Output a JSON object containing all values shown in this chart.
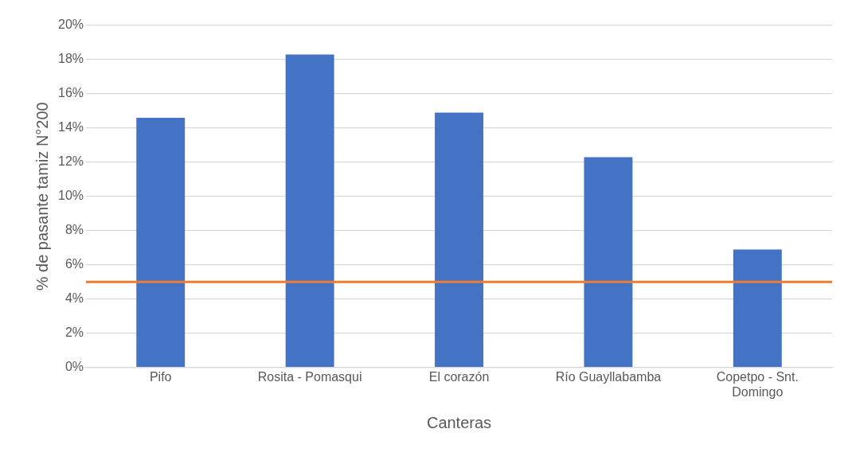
{
  "chart_data": {
    "type": "bar",
    "xlabel": "Canteras",
    "ylabel": "% de pasante tamiz N°200",
    "categories": [
      "Pifo",
      "Rosita - Pomasqui",
      "El corazón",
      "Río Guayllabamba",
      "Copetpo - Snt. Domingo"
    ],
    "values": [
      14.6,
      18.3,
      14.9,
      12.3,
      6.9
    ],
    "color": "#4472c4",
    "ylim": [
      0,
      20
    ],
    "yticks": [
      {
        "value": 0,
        "label": "0%"
      },
      {
        "value": 2,
        "label": "2%"
      },
      {
        "value": 4,
        "label": "4%"
      },
      {
        "value": 6,
        "label": "6%"
      },
      {
        "value": 8,
        "label": "8%"
      },
      {
        "value": 10,
        "label": "10%"
      },
      {
        "value": 12,
        "label": "12%"
      },
      {
        "value": 14,
        "label": "14%"
      },
      {
        "value": 16,
        "label": "16%"
      },
      {
        "value": 18,
        "label": "18%"
      },
      {
        "value": 20,
        "label": "20%"
      }
    ],
    "ref_lines": [
      {
        "axis": "y",
        "value": 5,
        "color": "#ed7d31"
      }
    ],
    "grid": "y",
    "legend": false
  }
}
